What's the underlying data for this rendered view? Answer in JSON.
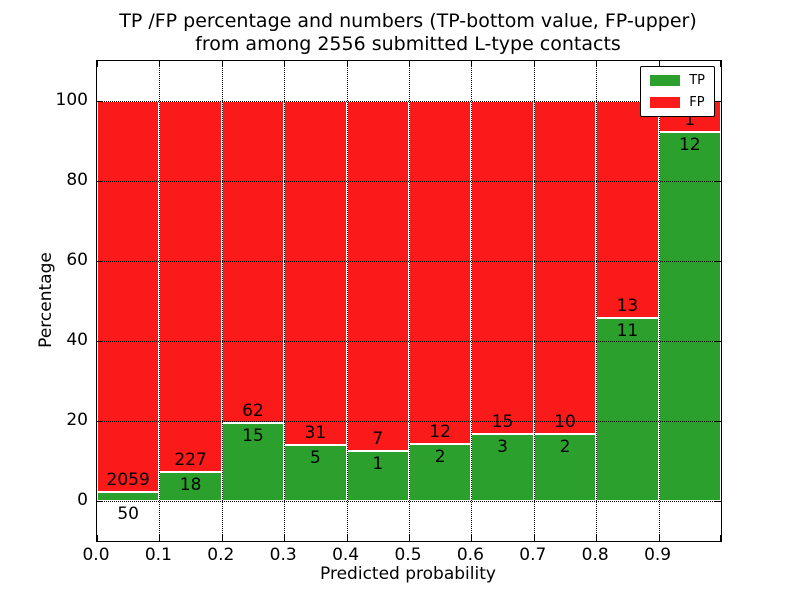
{
  "figure": {
    "title_line1": "TP /FP percentage and numbers (TP-bottom value, FP-upper)",
    "title_line2": "from among 2556 submitted L-type contacts"
  },
  "colors": {
    "tp": "#2ca02c",
    "fp": "#fa1a1a",
    "bar_edge": "#ffffff",
    "grid": "#000000",
    "background": "#ffffff",
    "text": "#000000"
  },
  "chart_data": {
    "type": "bar",
    "stacked": true,
    "orientation": "vertical",
    "title": "TP /FP percentage and numbers (TP-bottom value, FP-upper)\nfrom among 2556 submitted L-type contacts",
    "xlabel": "Predicted probability",
    "ylabel": "Percentage",
    "xlim": [
      0.0,
      1.0
    ],
    "ylim": [
      -10,
      110
    ],
    "grid": true,
    "grid_style": "dotted",
    "bin_width": 0.1,
    "bin_starts": [
      0.0,
      0.1,
      0.2,
      0.3,
      0.4,
      0.5,
      0.6,
      0.7,
      0.8,
      0.9
    ],
    "x_tick_labels": [
      "0.0",
      "0.1",
      "0.2",
      "0.3",
      "0.4",
      "0.5",
      "0.6",
      "0.7",
      "0.8",
      "0.9"
    ],
    "y_tick_values": [
      0,
      20,
      40,
      60,
      80,
      100
    ],
    "total_submitted": 2556,
    "series": [
      {
        "name": "TP",
        "color": "#2ca02c",
        "counts": [
          50,
          18,
          15,
          5,
          1,
          2,
          3,
          2,
          11,
          12
        ],
        "percent_of_bin": [
          2.4,
          7.3,
          19.5,
          13.9,
          12.5,
          14.3,
          16.7,
          16.7,
          45.8,
          92.3
        ]
      },
      {
        "name": "FP",
        "color": "#fa1a1a",
        "counts": [
          2059,
          227,
          62,
          31,
          7,
          12,
          15,
          10,
          13,
          1
        ],
        "percent_of_bin": [
          97.6,
          92.7,
          80.5,
          86.1,
          87.5,
          85.7,
          83.3,
          83.3,
          54.2,
          7.7
        ]
      }
    ],
    "legend": {
      "position": "upper right",
      "entries": [
        {
          "label": "TP",
          "color": "#2ca02c"
        },
        {
          "label": "FP",
          "color": "#fa1a1a"
        }
      ]
    }
  }
}
